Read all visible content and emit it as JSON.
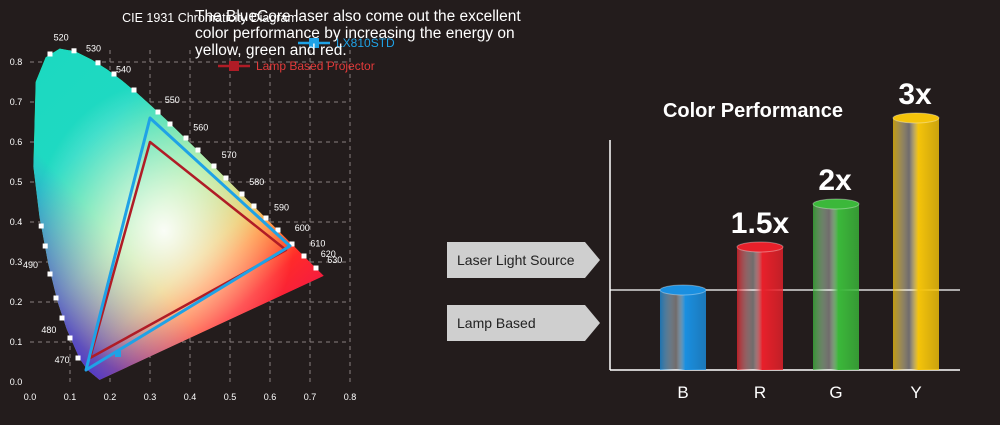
{
  "chart_data": [
    {
      "type": "scatter",
      "title": "CIE 1931 Chromaticity Diagram",
      "xlim": [
        0.0,
        0.8
      ],
      "ylim": [
        0.0,
        0.8
      ],
      "x_ticks": [
        "0.0",
        "0.1",
        "0.2",
        "0.3",
        "0.4",
        "0.5",
        "0.6",
        "0.7",
        "0.8"
      ],
      "y_ticks": [
        "0.0",
        "0.1",
        "0.2",
        "0.3",
        "0.4",
        "0.5",
        "0.6",
        "0.7",
        "0.8"
      ],
      "grid": true,
      "legend_position": "top-right",
      "wavelength_labels": [
        {
          "label": "470",
          "x": 0.124,
          "y": 0.058
        },
        {
          "label": "480",
          "x": 0.091,
          "y": 0.133
        },
        {
          "label": "490",
          "x": 0.045,
          "y": 0.295
        },
        {
          "label": "520",
          "x": 0.074,
          "y": 0.834
        },
        {
          "label": "530",
          "x": 0.155,
          "y": 0.806
        },
        {
          "label": "540",
          "x": 0.23,
          "y": 0.754
        },
        {
          "label": "550",
          "x": 0.302,
          "y": 0.692
        },
        {
          "label": "560",
          "x": 0.373,
          "y": 0.624
        },
        {
          "label": "570",
          "x": 0.444,
          "y": 0.555
        },
        {
          "label": "580",
          "x": 0.513,
          "y": 0.487
        },
        {
          "label": "590",
          "x": 0.575,
          "y": 0.424
        },
        {
          "label": "600",
          "x": 0.627,
          "y": 0.372
        },
        {
          "label": "610",
          "x": 0.666,
          "y": 0.334
        },
        {
          "label": "620",
          "x": 0.692,
          "y": 0.308
        },
        {
          "label": "630",
          "x": 0.708,
          "y": 0.292
        }
      ],
      "series": [
        {
          "name": "LX810STD",
          "color": "#1fa2e6",
          "points": [
            [
              0.14,
              0.03
            ],
            [
              0.3,
              0.66
            ],
            [
              0.65,
              0.34
            ]
          ]
        },
        {
          "name": "Lamp Based Projector",
          "color": "#b01c26",
          "points": [
            [
              0.15,
              0.06
            ],
            [
              0.3,
              0.6
            ],
            [
              0.64,
              0.33
            ]
          ]
        }
      ]
    },
    {
      "type": "bar",
      "title": "Color Performance",
      "categories": [
        "B",
        "R",
        "G",
        "Y"
      ],
      "values": [
        1,
        1.5,
        2,
        3
      ],
      "value_labels": [
        "",
        "1.5x",
        "2x",
        "3x"
      ],
      "colors": [
        "#1a8fe0",
        "#e8202a",
        "#3bb83a",
        "#f5c40a"
      ],
      "ylim": [
        0,
        3.6
      ],
      "reference_lines": [
        {
          "label": "Laser Light Source",
          "value": 1.0
        },
        {
          "label": "Lamp Based",
          "value": 0.0
        }
      ]
    }
  ],
  "description": [
    "The BlueCore laser also come out the excellent",
    "color performance by increasing the energy on",
    "yellow, green and red."
  ]
}
